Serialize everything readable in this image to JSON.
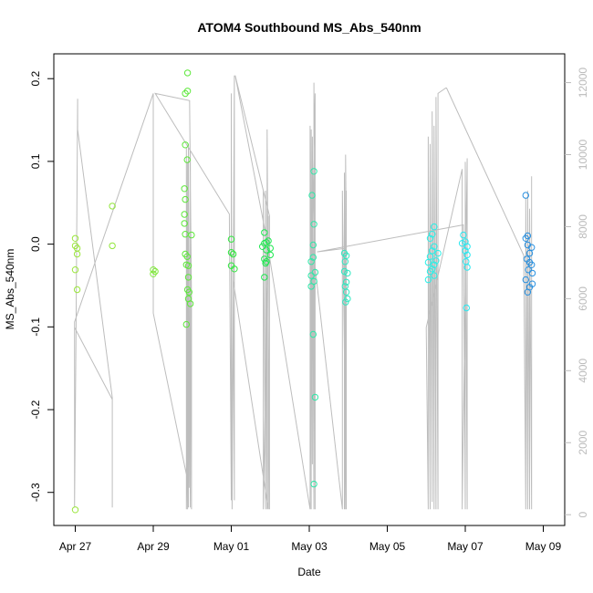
{
  "chart_data": {
    "type": "scatter",
    "title": "ATOM4 Southbound MS_Abs_540nm",
    "xlabel": "Date",
    "ylabel": "MS_Abs_540nm",
    "x_unit": "days since Apr 27 00:00",
    "xlim": [
      -0.55,
      12.55
    ],
    "ylim": [
      -0.34,
      0.23
    ],
    "y2lim": [
      -300,
      12800
    ],
    "x_ticks": [
      {
        "value": 0,
        "label": "Apr 27"
      },
      {
        "value": 2,
        "label": "Apr 29"
      },
      {
        "value": 4,
        "label": "May 01"
      },
      {
        "value": 6,
        "label": "May 03"
      },
      {
        "value": 8,
        "label": "May 05"
      },
      {
        "value": 10,
        "label": "May 07"
      },
      {
        "value": 12,
        "label": "May 09"
      }
    ],
    "y_ticks": [
      {
        "value": 0.2,
        "label": "0.2"
      },
      {
        "value": 0.1,
        "label": "0.1"
      },
      {
        "value": 0.0,
        "label": "0.0"
      },
      {
        "value": -0.1,
        "label": "-0.1"
      },
      {
        "value": -0.2,
        "label": "-0.2"
      },
      {
        "value": -0.3,
        "label": "-0.3"
      }
    ],
    "y2_ticks": [
      {
        "value": 0,
        "label": "0"
      },
      {
        "value": 2000,
        "label": "2000"
      },
      {
        "value": 4000,
        "label": "4000"
      },
      {
        "value": 6000,
        "label": "6000"
      },
      {
        "value": 8000,
        "label": "8000"
      },
      {
        "value": 10000,
        "label": "10000"
      },
      {
        "value": 12000,
        "label": "12000"
      }
    ],
    "colors": {
      "line": "#bdbdbd",
      "axis": "#000000",
      "axis_right": "#bbbbbb"
    },
    "point_groups": [
      {
        "color": "#9ae63c",
        "points": [
          [
            0.0,
            0.007
          ],
          [
            0.0,
            -0.002
          ],
          [
            0.05,
            -0.005
          ],
          [
            0.05,
            -0.012
          ],
          [
            0.0,
            -0.031
          ],
          [
            0.05,
            -0.055
          ],
          [
            0.0,
            -0.321
          ]
        ]
      },
      {
        "color": "#92e63c",
        "points": [
          [
            0.95,
            0.046
          ],
          [
            0.95,
            -0.002
          ]
        ]
      },
      {
        "color": "#80e83c",
        "points": [
          [
            2.0,
            -0.031
          ],
          [
            2.0,
            -0.036
          ],
          [
            2.05,
            -0.033
          ]
        ]
      },
      {
        "color": "#5ee83c",
        "points": [
          [
            2.88,
            0.207
          ],
          [
            2.82,
            0.182
          ],
          [
            2.88,
            0.185
          ],
          [
            2.82,
            0.12
          ],
          [
            2.87,
            0.102
          ],
          [
            2.8,
            0.067
          ],
          [
            2.82,
            0.054
          ],
          [
            2.8,
            0.036
          ],
          [
            2.8,
            0.025
          ],
          [
            2.82,
            0.012
          ],
          [
            2.98,
            0.011
          ],
          [
            2.82,
            -0.012
          ],
          [
            2.87,
            -0.015
          ],
          [
            2.85,
            -0.025
          ],
          [
            2.9,
            -0.026
          ],
          [
            2.9,
            -0.04
          ],
          [
            2.88,
            -0.055
          ],
          [
            2.92,
            -0.058
          ],
          [
            2.9,
            -0.066
          ],
          [
            2.95,
            -0.072
          ],
          [
            2.85,
            -0.097
          ]
        ]
      },
      {
        "color": "#2ee83c",
        "points": [
          [
            4.0,
            0.006
          ],
          [
            4.0,
            -0.01
          ],
          [
            4.05,
            -0.012
          ],
          [
            4.0,
            -0.026
          ],
          [
            4.08,
            -0.03
          ]
        ]
      },
      {
        "color": "#1ee850",
        "points": [
          [
            4.85,
            0.014
          ],
          [
            4.85,
            0.001
          ],
          [
            4.9,
            0.002
          ],
          [
            4.95,
            0.004
          ],
          [
            4.8,
            -0.003
          ],
          [
            4.9,
            -0.007
          ],
          [
            5.0,
            -0.005
          ],
          [
            4.85,
            -0.018
          ],
          [
            4.9,
            -0.021
          ],
          [
            5.0,
            -0.013
          ],
          [
            4.88,
            -0.023
          ],
          [
            4.85,
            -0.04
          ]
        ]
      },
      {
        "color": "#2ee8a8",
        "points": [
          [
            6.12,
            0.088
          ],
          [
            6.07,
            0.059
          ],
          [
            6.12,
            0.024
          ],
          [
            6.1,
            -0.001
          ],
          [
            6.1,
            -0.016
          ],
          [
            6.05,
            -0.021
          ],
          [
            6.15,
            -0.034
          ],
          [
            6.05,
            -0.038
          ],
          [
            6.12,
            -0.045
          ],
          [
            6.05,
            -0.051
          ],
          [
            6.1,
            -0.109
          ],
          [
            6.15,
            -0.185
          ],
          [
            6.12,
            -0.29
          ]
        ]
      },
      {
        "color": "#2ee8c0",
        "points": [
          [
            6.9,
            -0.011
          ],
          [
            6.95,
            -0.014
          ],
          [
            6.92,
            -0.021
          ],
          [
            6.9,
            -0.033
          ],
          [
            6.98,
            -0.035
          ],
          [
            6.95,
            -0.046
          ],
          [
            6.92,
            -0.051
          ],
          [
            6.95,
            -0.058
          ],
          [
            6.98,
            -0.066
          ],
          [
            6.93,
            -0.07
          ]
        ]
      },
      {
        "color": "#28f0e8",
        "points": [
          [
            9.2,
            0.021
          ],
          [
            9.15,
            0.012
          ],
          [
            9.1,
            0.007
          ],
          [
            9.2,
            -0.003
          ],
          [
            9.15,
            -0.008
          ],
          [
            9.3,
            -0.011
          ],
          [
            9.1,
            -0.015
          ],
          [
            9.25,
            -0.02
          ],
          [
            9.05,
            -0.022
          ],
          [
            9.2,
            -0.025
          ],
          [
            9.15,
            -0.03
          ],
          [
            9.1,
            -0.033
          ],
          [
            9.2,
            -0.038
          ],
          [
            9.05,
            -0.043
          ]
        ]
      },
      {
        "color": "#28e8f0",
        "points": [
          [
            9.95,
            0.011
          ],
          [
            10.0,
            0.003
          ],
          [
            9.92,
            0.001
          ],
          [
            10.05,
            -0.003
          ],
          [
            10.0,
            -0.008
          ],
          [
            10.05,
            -0.013
          ],
          [
            10.02,
            -0.021
          ],
          [
            10.05,
            -0.028
          ],
          [
            10.03,
            -0.077
          ]
        ]
      },
      {
        "color": "#2890e0",
        "points": [
          [
            11.55,
            0.059
          ],
          [
            11.6,
            0.01
          ],
          [
            11.55,
            0.007
          ],
          [
            11.6,
            -0.001
          ],
          [
            11.7,
            -0.004
          ],
          [
            11.65,
            -0.011
          ],
          [
            11.58,
            -0.018
          ],
          [
            11.65,
            -0.022
          ],
          [
            11.7,
            -0.025
          ],
          [
            11.62,
            -0.031
          ],
          [
            11.72,
            -0.035
          ],
          [
            11.55,
            -0.043
          ],
          [
            11.72,
            -0.048
          ],
          [
            11.65,
            -0.052
          ],
          [
            11.6,
            -0.058
          ]
        ]
      }
    ],
    "line_series": [
      {
        "name": "secondary_axis_trace",
        "points": [
          [
            -0.02,
            5300
          ],
          [
            -0.02,
            200
          ],
          [
            0.02,
            5300
          ],
          [
            0.06,
            11550
          ],
          [
            0.06,
            10700
          ],
          [
            0.95,
            3250
          ],
          [
            0.95,
            200
          ],
          [
            0.95,
            3200
          ],
          [
            -0.02,
            5200
          ],
          [
            -0.02,
            5350
          ],
          [
            2.0,
            11700
          ],
          [
            2.0,
            5600
          ],
          [
            2.92,
            750
          ],
          [
            2.92,
            6900
          ],
          [
            2.85,
            150
          ],
          [
            2.85,
            10200
          ],
          [
            2.88,
            150
          ],
          [
            2.88,
            9800
          ],
          [
            2.9,
            200
          ],
          [
            2.9,
            10300
          ],
          [
            2.95,
            200
          ],
          [
            2.95,
            10100
          ],
          [
            2.98,
            150
          ],
          [
            2.98,
            6000
          ],
          [
            2.93,
            11500
          ],
          [
            2.05,
            11700
          ],
          [
            3.95,
            8350
          ],
          [
            4.0,
            400
          ],
          [
            4.0,
            11700
          ],
          [
            4.02,
            150
          ],
          [
            4.08,
            12200
          ],
          [
            4.08,
            400
          ],
          [
            4.05,
            6500
          ],
          [
            4.95,
            150
          ],
          [
            4.95,
            8300
          ],
          [
            4.82,
            150
          ],
          [
            4.82,
            9000
          ],
          [
            4.88,
            150
          ],
          [
            4.88,
            9000
          ],
          [
            4.92,
            150
          ],
          [
            4.92,
            10700
          ],
          [
            4.98,
            150
          ],
          [
            4.98,
            8300
          ],
          [
            4.1,
            12200
          ],
          [
            4.9,
            7700
          ],
          [
            6.02,
            150
          ],
          [
            6.02,
            10800
          ],
          [
            6.05,
            150
          ],
          [
            6.05,
            10700
          ],
          [
            6.08,
            1400
          ],
          [
            6.08,
            10500
          ],
          [
            6.12,
            150
          ],
          [
            6.12,
            12000
          ],
          [
            6.15,
            150
          ],
          [
            6.15,
            11700
          ],
          [
            6.08,
            7550
          ],
          [
            6.85,
            150
          ],
          [
            6.85,
            9000
          ],
          [
            6.95,
            150
          ],
          [
            6.95,
            9000
          ],
          [
            6.9,
            150
          ],
          [
            6.9,
            9500
          ],
          [
            6.93,
            150
          ],
          [
            6.93,
            10000
          ],
          [
            6.95,
            7400
          ],
          [
            6.2,
            7300
          ],
          [
            9.95,
            8050
          ],
          [
            10.0,
            150
          ],
          [
            10.0,
            9800
          ],
          [
            10.05,
            150
          ],
          [
            10.05,
            9900
          ],
          [
            9.92,
            150
          ],
          [
            9.92,
            9600
          ],
          [
            9.0,
            5200
          ],
          [
            9.05,
            150
          ],
          [
            9.05,
            10500
          ],
          [
            9.1,
            150
          ],
          [
            9.1,
            10300
          ],
          [
            9.15,
            350
          ],
          [
            9.15,
            11200
          ],
          [
            9.2,
            150
          ],
          [
            9.2,
            10800
          ],
          [
            9.25,
            150
          ],
          [
            9.25,
            11600
          ],
          [
            9.3,
            150
          ],
          [
            9.3,
            11700
          ],
          [
            9.5,
            11850
          ],
          [
            9.52,
            11850
          ],
          [
            11.5,
            7200
          ],
          [
            11.55,
            150
          ],
          [
            11.55,
            8800
          ],
          [
            11.6,
            150
          ],
          [
            11.6,
            9000
          ],
          [
            11.65,
            150
          ],
          [
            11.65,
            8500
          ],
          [
            11.7,
            150
          ],
          [
            11.7,
            9400
          ]
        ]
      }
    ]
  }
}
